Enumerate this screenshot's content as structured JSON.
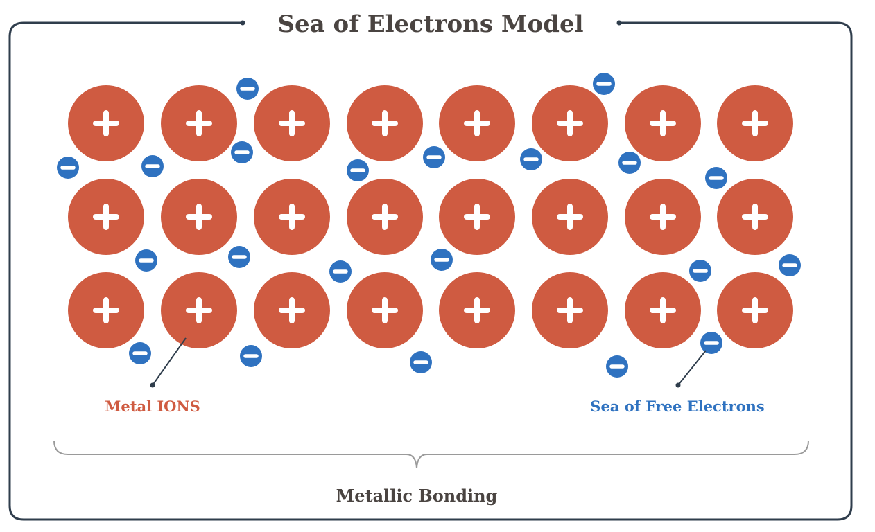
{
  "title": "Sea of Electrons Model",
  "labels": {
    "metal_ions": "Metal IONS",
    "free_electrons": "Sea of Free Electrons",
    "bonding": "Metallic Bonding"
  },
  "symbols": {
    "ion": "+",
    "electron": "−"
  },
  "colors": {
    "ion": "#cf5b41",
    "electron": "#2f72c0",
    "frame": "#2f3d4c",
    "title": "#4a4441",
    "brace": "#9a9a9a",
    "metal_label": "#cf5b41",
    "electron_label": "#2f72c0",
    "bonding_label": "#4a4441"
  },
  "lattice": {
    "rows": 3,
    "columns": 8,
    "ion_count": 24
  },
  "electron_count": 22
}
